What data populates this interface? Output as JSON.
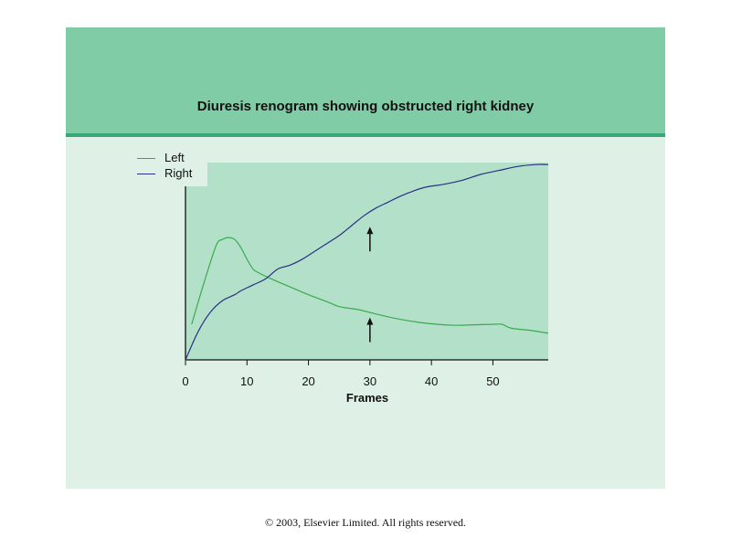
{
  "chart_data": {
    "type": "line",
    "title": "Diuresis renogram showing obstructed right kidney",
    "xlabel": "Frames",
    "ylabel": "",
    "xlim": [
      0,
      59
    ],
    "ylim": [
      0,
      100
    ],
    "x_ticks": [
      0,
      10,
      20,
      30,
      40,
      50
    ],
    "legend_position": "top-left",
    "grid": false,
    "annotations": [
      {
        "type": "arrow",
        "x": 30,
        "y_from": 55,
        "y_to": 67
      },
      {
        "type": "arrow",
        "x": 30,
        "y_from": 9,
        "y_to": 21
      }
    ],
    "series": [
      {
        "name": "Left",
        "color": "#3aaa4e",
        "points": [
          [
            1,
            18
          ],
          [
            3,
            39
          ],
          [
            5,
            58
          ],
          [
            6,
            61
          ],
          [
            7,
            62
          ],
          [
            8,
            61
          ],
          [
            9,
            57
          ],
          [
            10,
            51
          ],
          [
            11,
            46
          ],
          [
            12,
            44
          ],
          [
            14,
            41
          ],
          [
            17,
            37
          ],
          [
            20,
            33
          ],
          [
            23,
            29.5
          ],
          [
            25,
            27
          ],
          [
            28,
            25.5
          ],
          [
            30,
            24
          ],
          [
            32,
            22.5
          ],
          [
            35,
            20.5
          ],
          [
            38,
            19
          ],
          [
            41,
            18
          ],
          [
            44,
            17.5
          ],
          [
            47,
            17.8
          ],
          [
            50,
            18
          ],
          [
            51.5,
            18
          ],
          [
            53,
            16
          ],
          [
            56,
            15
          ],
          [
            59,
            13.5
          ]
        ]
      },
      {
        "name": "Right",
        "color": "#2b3088",
        "points": [
          [
            0,
            0
          ],
          [
            2,
            14
          ],
          [
            4,
            24
          ],
          [
            6,
            30
          ],
          [
            8,
            33
          ],
          [
            9,
            35
          ],
          [
            11,
            38
          ],
          [
            13,
            41
          ],
          [
            15,
            46
          ],
          [
            17,
            48
          ],
          [
            19,
            51
          ],
          [
            21,
            55
          ],
          [
            23,
            59
          ],
          [
            25,
            63
          ],
          [
            27,
            68
          ],
          [
            29,
            73
          ],
          [
            31,
            77
          ],
          [
            33,
            80
          ],
          [
            35,
            83
          ],
          [
            37,
            85.5
          ],
          [
            39,
            87.5
          ],
          [
            42,
            89
          ],
          [
            45,
            91
          ],
          [
            48,
            94
          ],
          [
            51,
            96
          ],
          [
            54,
            98
          ],
          [
            57,
            99
          ],
          [
            59,
            99
          ]
        ]
      }
    ]
  },
  "copyright": "© 2003, Elsevier Limited. All rights reserved."
}
